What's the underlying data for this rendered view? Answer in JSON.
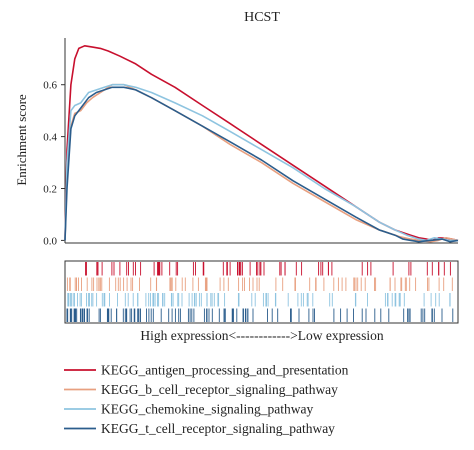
{
  "chart_data": {
    "type": "line",
    "title": "HCST",
    "ylabel": "Enrichment score",
    "ylim": [
      -0.01,
      0.78
    ],
    "yticks": [
      "0.0",
      "0.2",
      "0.4",
      "0.6"
    ],
    "xlim": [
      0,
      1
    ],
    "grid": false,
    "legend_position": "bottom-left",
    "hit_caption": "High expression<------------>Low expression",
    "series": [
      {
        "name": "KEGG_antigen_processing_and_presentation",
        "color": "#c8102e",
        "x": [
          0.0,
          0.005,
          0.015,
          0.025,
          0.035,
          0.05,
          0.07,
          0.09,
          0.11,
          0.14,
          0.18,
          0.22,
          0.28,
          0.35,
          0.42,
          0.5,
          0.58,
          0.66,
          0.74,
          0.8,
          0.84,
          0.88,
          0.9,
          0.92,
          0.935,
          0.95,
          0.97,
          0.985,
          1.0
        ],
        "y": [
          0.0,
          0.35,
          0.6,
          0.7,
          0.74,
          0.75,
          0.745,
          0.74,
          0.73,
          0.71,
          0.68,
          0.64,
          0.59,
          0.52,
          0.45,
          0.37,
          0.29,
          0.21,
          0.13,
          0.07,
          0.04,
          0.02,
          0.01,
          0.005,
          0.0,
          0.01,
          0.008,
          0.005,
          0.0
        ]
      },
      {
        "name": "KEGG_b_cell_receptor_signaling_pathway",
        "color": "#e8a080",
        "x": [
          0.0,
          0.005,
          0.015,
          0.025,
          0.04,
          0.055,
          0.07,
          0.08,
          0.1,
          0.12,
          0.15,
          0.18,
          0.22,
          0.28,
          0.35,
          0.42,
          0.5,
          0.58,
          0.66,
          0.74,
          0.8,
          0.85,
          0.88,
          0.9,
          0.93,
          0.95,
          0.97,
          1.0
        ],
        "y": [
          0.0,
          0.25,
          0.44,
          0.49,
          0.5,
          0.53,
          0.55,
          0.56,
          0.58,
          0.6,
          0.6,
          0.58,
          0.55,
          0.5,
          0.44,
          0.37,
          0.3,
          0.22,
          0.15,
          0.08,
          0.04,
          0.015,
          0.005,
          0.0,
          -0.005,
          0.0,
          0.01,
          0.0
        ]
      },
      {
        "name": "KEGG_chemokine_signaling_pathway",
        "color": "#8ec4e0",
        "x": [
          0.0,
          0.005,
          0.015,
          0.025,
          0.04,
          0.06,
          0.08,
          0.1,
          0.12,
          0.15,
          0.18,
          0.22,
          0.28,
          0.35,
          0.42,
          0.5,
          0.58,
          0.66,
          0.74,
          0.8,
          0.84,
          0.87,
          0.9,
          0.92,
          0.94,
          0.96,
          0.98,
          1.0
        ],
        "y": [
          0.0,
          0.3,
          0.5,
          0.52,
          0.53,
          0.57,
          0.58,
          0.59,
          0.6,
          0.6,
          0.59,
          0.57,
          0.53,
          0.48,
          0.42,
          0.35,
          0.28,
          0.2,
          0.13,
          0.07,
          0.04,
          0.02,
          0.005,
          0.0,
          0.01,
          0.005,
          0.0,
          0.0
        ]
      },
      {
        "name": "KEGG_t_cell_receptor_signaling_pathway",
        "color": "#2b5d8c",
        "x": [
          0.0,
          0.005,
          0.015,
          0.025,
          0.04,
          0.06,
          0.08,
          0.1,
          0.12,
          0.15,
          0.18,
          0.22,
          0.28,
          0.35,
          0.42,
          0.5,
          0.58,
          0.66,
          0.74,
          0.8,
          0.84,
          0.86,
          0.88,
          0.9,
          0.93,
          0.96,
          0.98,
          1.0
        ],
        "y": [
          0.0,
          0.2,
          0.43,
          0.48,
          0.51,
          0.55,
          0.57,
          0.58,
          0.59,
          0.59,
          0.58,
          0.55,
          0.5,
          0.44,
          0.38,
          0.31,
          0.23,
          0.16,
          0.09,
          0.04,
          0.02,
          0.005,
          0.0,
          -0.005,
          0.0,
          0.005,
          -0.005,
          0.0
        ]
      }
    ]
  }
}
